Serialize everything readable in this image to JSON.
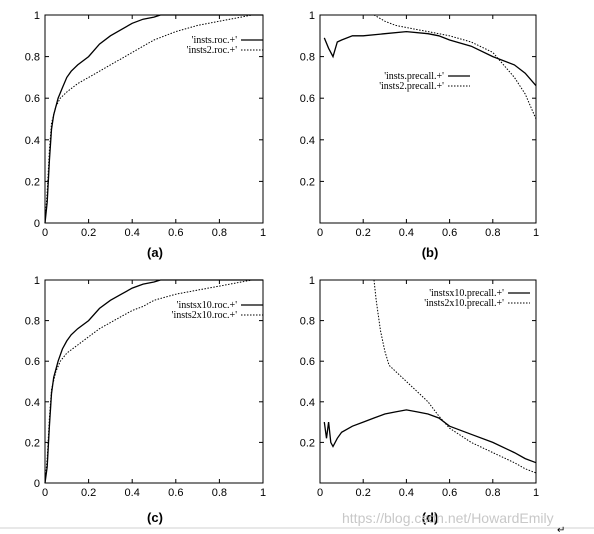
{
  "chart_data": [
    {
      "type": "line",
      "panel_label": "(a)",
      "xlim": [
        0,
        1
      ],
      "ylim": [
        0,
        1
      ],
      "xticks": [
        "0",
        "0.2",
        "0.4",
        "0.6",
        "0.8",
        "1"
      ],
      "yticks": [
        "0",
        "0.2",
        "0.4",
        "0.6",
        "0.8",
        "1"
      ],
      "legend_position": "top-right",
      "series": [
        {
          "name": "'insts.roc.+'",
          "style": "solid",
          "x": [
            0,
            0.01,
            0.02,
            0.03,
            0.04,
            0.06,
            0.08,
            0.1,
            0.12,
            0.15,
            0.2,
            0.25,
            0.3,
            0.35,
            0.4,
            0.45,
            0.5,
            0.53,
            0.55,
            1.0
          ],
          "y": [
            0,
            0.1,
            0.3,
            0.45,
            0.52,
            0.6,
            0.65,
            0.7,
            0.73,
            0.76,
            0.8,
            0.86,
            0.9,
            0.93,
            0.96,
            0.98,
            0.99,
            1.0,
            1.0,
            1.0
          ]
        },
        {
          "name": "'insts2.roc.+'",
          "style": "dotted",
          "x": [
            0,
            0.01,
            0.02,
            0.03,
            0.05,
            0.07,
            0.1,
            0.15,
            0.2,
            0.25,
            0.3,
            0.35,
            0.4,
            0.45,
            0.5,
            0.6,
            0.7,
            0.8,
            0.9,
            0.95,
            1.0
          ],
          "y": [
            0,
            0.15,
            0.35,
            0.48,
            0.56,
            0.6,
            0.63,
            0.67,
            0.7,
            0.73,
            0.76,
            0.79,
            0.82,
            0.85,
            0.88,
            0.92,
            0.95,
            0.97,
            0.99,
            1.0,
            1.0
          ]
        }
      ]
    },
    {
      "type": "line",
      "panel_label": "(b)",
      "xlim": [
        0,
        1
      ],
      "ylim": [
        0,
        1
      ],
      "xticks": [
        "0",
        "0.2",
        "0.4",
        "0.6",
        "0.8",
        "1"
      ],
      "yticks": [
        "0.2",
        "0.4",
        "0.6",
        "0.8",
        "1"
      ],
      "legend_position": "center-right",
      "series": [
        {
          "name": "'insts.precall.+'",
          "style": "solid",
          "x": [
            0.02,
            0.04,
            0.06,
            0.08,
            0.1,
            0.15,
            0.2,
            0.3,
            0.4,
            0.5,
            0.55,
            0.6,
            0.7,
            0.8,
            0.9,
            0.95,
            1.0
          ],
          "y": [
            0.89,
            0.84,
            0.8,
            0.87,
            0.88,
            0.9,
            0.9,
            0.91,
            0.92,
            0.91,
            0.9,
            0.88,
            0.85,
            0.8,
            0.76,
            0.72,
            0.66
          ]
        },
        {
          "name": "'insts2.precall.+'",
          "style": "dotted",
          "x": [
            0.25,
            0.3,
            0.35,
            0.4,
            0.45,
            0.5,
            0.55,
            0.6,
            0.7,
            0.8,
            0.85,
            0.9,
            0.95,
            1.0
          ],
          "y": [
            1.0,
            0.97,
            0.95,
            0.94,
            0.93,
            0.92,
            0.91,
            0.9,
            0.87,
            0.82,
            0.76,
            0.7,
            0.62,
            0.5
          ]
        }
      ]
    },
    {
      "type": "line",
      "panel_label": "(c)",
      "xlim": [
        0,
        1
      ],
      "ylim": [
        0,
        1
      ],
      "xticks": [
        "0",
        "0.2",
        "0.4",
        "0.6",
        "0.8",
        "1"
      ],
      "yticks": [
        "0",
        "0.2",
        "0.4",
        "0.6",
        "0.8",
        "1"
      ],
      "legend_position": "top-right",
      "series": [
        {
          "name": "'instsx10.roc.+'",
          "style": "solid",
          "x": [
            0,
            0.01,
            0.02,
            0.03,
            0.04,
            0.06,
            0.08,
            0.1,
            0.12,
            0.15,
            0.2,
            0.25,
            0.3,
            0.35,
            0.4,
            0.45,
            0.5,
            0.53,
            0.55,
            1.0
          ],
          "y": [
            0,
            0.08,
            0.28,
            0.44,
            0.52,
            0.6,
            0.66,
            0.7,
            0.73,
            0.76,
            0.8,
            0.86,
            0.9,
            0.93,
            0.96,
            0.98,
            0.99,
            1.0,
            1.0,
            1.0
          ]
        },
        {
          "name": "'insts2x10.roc.+'",
          "style": "dotted",
          "x": [
            0,
            0.01,
            0.02,
            0.03,
            0.05,
            0.07,
            0.1,
            0.15,
            0.2,
            0.25,
            0.3,
            0.35,
            0.4,
            0.45,
            0.5,
            0.6,
            0.7,
            0.8,
            0.9,
            0.95,
            1.0
          ],
          "y": [
            0,
            0.12,
            0.32,
            0.46,
            0.55,
            0.6,
            0.64,
            0.68,
            0.72,
            0.76,
            0.79,
            0.82,
            0.85,
            0.87,
            0.9,
            0.93,
            0.95,
            0.97,
            0.99,
            1.0,
            1.0
          ]
        }
      ]
    },
    {
      "type": "line",
      "panel_label": "(d)",
      "xlim": [
        0,
        1
      ],
      "ylim": [
        0,
        1
      ],
      "xticks": [
        "0",
        "0.2",
        "0.4",
        "0.6",
        "0.8",
        "1"
      ],
      "yticks": [
        "0.2",
        "0.4",
        "0.6",
        "0.8",
        "1"
      ],
      "legend_position": "top-right",
      "series": [
        {
          "name": "'instsx10.precall.+'",
          "style": "solid",
          "x": [
            0.02,
            0.03,
            0.04,
            0.05,
            0.06,
            0.08,
            0.1,
            0.15,
            0.2,
            0.25,
            0.3,
            0.35,
            0.4,
            0.45,
            0.5,
            0.55,
            0.6,
            0.7,
            0.8,
            0.9,
            0.95,
            1.0
          ],
          "y": [
            0.3,
            0.22,
            0.3,
            0.2,
            0.18,
            0.22,
            0.25,
            0.28,
            0.3,
            0.32,
            0.34,
            0.35,
            0.36,
            0.35,
            0.34,
            0.32,
            0.28,
            0.24,
            0.2,
            0.15,
            0.12,
            0.1
          ]
        },
        {
          "name": "'insts2x10.precall.+'",
          "style": "dotted",
          "x": [
            0.25,
            0.26,
            0.28,
            0.3,
            0.32,
            0.35,
            0.4,
            0.45,
            0.5,
            0.55,
            0.6,
            0.7,
            0.8,
            0.9,
            0.95,
            1.0
          ],
          "y": [
            1.0,
            0.9,
            0.75,
            0.65,
            0.58,
            0.55,
            0.5,
            0.45,
            0.4,
            0.33,
            0.27,
            0.2,
            0.15,
            0.1,
            0.07,
            0.05
          ]
        }
      ]
    }
  ],
  "watermark": "https://blog.csdn.net/HowardEmily",
  "corner_glyph": "↵"
}
